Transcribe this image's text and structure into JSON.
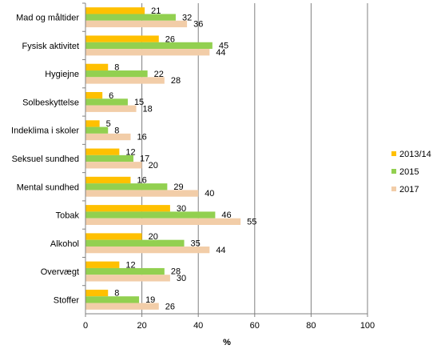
{
  "chart_data": {
    "type": "bar",
    "orientation": "horizontal",
    "categories": [
      "Mad og måltider",
      "Fysisk aktivitet",
      "Hygiejne",
      "Solbeskyttelse",
      "Indeklima i skoler",
      "Seksuel sundhed",
      "Mental sundhed",
      "Tobak",
      "Alkohol",
      "Overvægt",
      "Stoffer"
    ],
    "series": [
      {
        "name": "2013/14",
        "color": "#FFC000",
        "values": [
          21,
          26,
          8,
          6,
          5,
          12,
          16,
          30,
          20,
          12,
          8
        ]
      },
      {
        "name": "2015",
        "color": "#92D050",
        "values": [
          32,
          45,
          22,
          15,
          8,
          17,
          29,
          46,
          35,
          28,
          19
        ]
      },
      {
        "name": "2017",
        "color": "#F2CDA8",
        "values": [
          36,
          44,
          28,
          18,
          16,
          20,
          40,
          55,
          44,
          30,
          26
        ]
      }
    ],
    "title": "",
    "xlabel": "%",
    "ylabel": "",
    "xlim": [
      0,
      100
    ],
    "xticks": [
      0,
      20,
      40,
      60,
      80,
      100
    ],
    "grid": "vertical",
    "gridline_color": "#808080",
    "legend_position": "right",
    "data_labels": true
  }
}
